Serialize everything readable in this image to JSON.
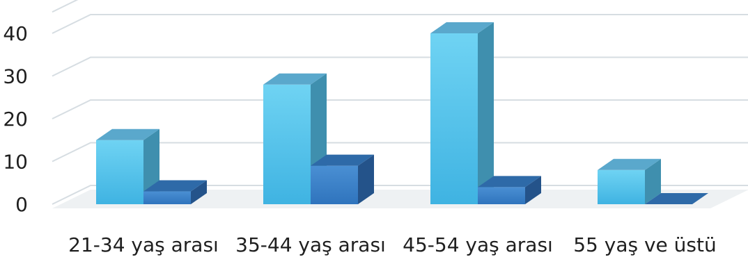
{
  "chart_data": {
    "type": "bar",
    "categories": [
      "21-34 yaş arası",
      "35-44 yaş arası",
      "45-54 yaş arası",
      "55 yaş ve üstü"
    ],
    "series": [
      {
        "values": [
          15,
          28,
          40,
          8
        ],
        "color": "#57c6ec"
      },
      {
        "values": [
          3,
          9,
          4,
          0
        ],
        "color": "#3a82c8"
      }
    ],
    "yticks": [
      0,
      10,
      20,
      30,
      40
    ],
    "ylim": [
      0,
      45
    ],
    "grid": true,
    "legend": "none",
    "title": "",
    "xlabel": "",
    "ylabel": ""
  }
}
